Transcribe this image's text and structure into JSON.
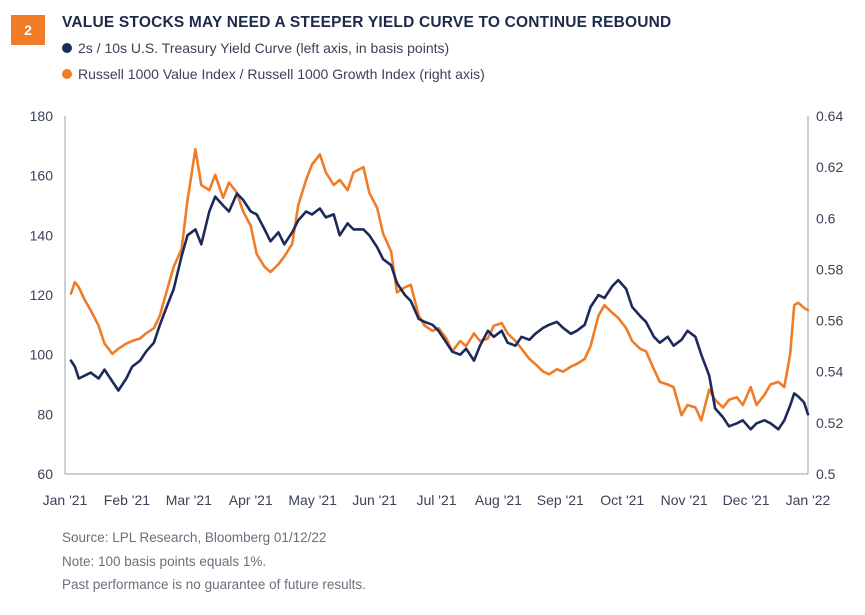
{
  "badge": "2",
  "title": "VALUE STOCKS MAY NEED A STEEPER YIELD CURVE TO CONTINUE REBOUND",
  "legend": [
    {
      "label": "2s / 10s U.S. Treasury Yield Curve (left axis, in basis points)",
      "color": "#1c2a5a"
    },
    {
      "label": "Russell 1000 Value Index / Russell 1000 Growth Index (right axis)",
      "color": "#f07c28"
    }
  ],
  "footnotes": {
    "source": "Source: LPL Research, Bloomberg   01/12/22",
    "note": "Note: 100 basis points equals 1%.",
    "disclaimer": "Past performance is no guarantee of future results."
  },
  "chart_data": {
    "type": "line",
    "x_labels": [
      "Jan '21",
      "Feb '21",
      "Mar '21",
      "Apr '21",
      "May '21",
      "Jun '21",
      "Jul '21",
      "Aug '21",
      "Sep '21",
      "Oct '21",
      "Nov '21",
      "Dec '21",
      "Jan '22"
    ],
    "x_range": [
      "2021-01-01",
      "2022-01-12"
    ],
    "left_axis": {
      "ticks": [
        60,
        80,
        100,
        120,
        140,
        160,
        180
      ],
      "ylim": [
        60,
        180
      ]
    },
    "right_axis": {
      "ticks": [
        0.5,
        0.52,
        0.54,
        0.56,
        0.58,
        0.6,
        0.62,
        0.64
      ],
      "ylim": [
        0.5,
        0.64
      ]
    },
    "grid": false,
    "series": [
      {
        "name": "2s / 10s U.S. Treasury Yield Curve (left axis, in basis points)",
        "axis": "left",
        "color": "#1c2a5a",
        "points": [
          [
            "2021-01-04",
            98
          ],
          [
            "2021-01-06",
            96
          ],
          [
            "2021-01-08",
            92
          ],
          [
            "2021-01-11",
            93
          ],
          [
            "2021-01-14",
            94
          ],
          [
            "2021-01-18",
            92
          ],
          [
            "2021-01-21",
            95
          ],
          [
            "2021-01-25",
            91
          ],
          [
            "2021-01-28",
            88
          ],
          [
            "2021-02-01",
            92
          ],
          [
            "2021-02-04",
            96
          ],
          [
            "2021-02-08",
            98
          ],
          [
            "2021-02-11",
            101
          ],
          [
            "2021-02-15",
            104
          ],
          [
            "2021-02-18",
            110
          ],
          [
            "2021-02-22",
            117
          ],
          [
            "2021-02-25",
            122
          ],
          [
            "2021-03-01",
            133
          ],
          [
            "2021-03-04",
            140
          ],
          [
            "2021-03-08",
            142
          ],
          [
            "2021-03-11",
            137
          ],
          [
            "2021-03-15",
            148
          ],
          [
            "2021-03-18",
            153
          ],
          [
            "2021-03-22",
            150
          ],
          [
            "2021-03-25",
            148
          ],
          [
            "2021-03-29",
            154
          ],
          [
            "2021-04-01",
            152
          ],
          [
            "2021-04-05",
            148
          ],
          [
            "2021-04-08",
            147
          ],
          [
            "2021-04-12",
            142
          ],
          [
            "2021-04-15",
            138
          ],
          [
            "2021-04-19",
            141
          ],
          [
            "2021-04-22",
            137
          ],
          [
            "2021-04-26",
            141
          ],
          [
            "2021-04-29",
            145
          ],
          [
            "2021-05-03",
            148
          ],
          [
            "2021-05-06",
            147
          ],
          [
            "2021-05-10",
            149
          ],
          [
            "2021-05-13",
            146
          ],
          [
            "2021-05-17",
            147
          ],
          [
            "2021-05-20",
            140
          ],
          [
            "2021-05-24",
            144
          ],
          [
            "2021-05-27",
            142
          ],
          [
            "2021-06-01",
            142
          ],
          [
            "2021-06-04",
            140
          ],
          [
            "2021-06-08",
            136
          ],
          [
            "2021-06-11",
            132
          ],
          [
            "2021-06-15",
            130
          ],
          [
            "2021-06-18",
            124
          ],
          [
            "2021-06-22",
            120
          ],
          [
            "2021-06-25",
            118
          ],
          [
            "2021-06-29",
            112
          ],
          [
            "2021-07-02",
            111
          ],
          [
            "2021-07-06",
            110
          ],
          [
            "2021-07-09",
            108
          ],
          [
            "2021-07-13",
            104
          ],
          [
            "2021-07-16",
            101
          ],
          [
            "2021-07-20",
            100
          ],
          [
            "2021-07-23",
            102
          ],
          [
            "2021-07-27",
            98
          ],
          [
            "2021-07-30",
            103
          ],
          [
            "2021-08-03",
            108
          ],
          [
            "2021-08-06",
            106
          ],
          [
            "2021-08-10",
            108
          ],
          [
            "2021-08-13",
            104
          ],
          [
            "2021-08-17",
            103
          ],
          [
            "2021-08-20",
            106
          ],
          [
            "2021-08-24",
            105
          ],
          [
            "2021-08-27",
            107
          ],
          [
            "2021-08-31",
            109
          ],
          [
            "2021-09-03",
            110
          ],
          [
            "2021-09-07",
            111
          ],
          [
            "2021-09-10",
            109
          ],
          [
            "2021-09-14",
            107
          ],
          [
            "2021-09-17",
            108
          ],
          [
            "2021-09-21",
            110
          ],
          [
            "2021-09-24",
            116
          ],
          [
            "2021-09-28",
            120
          ],
          [
            "2021-10-01",
            119
          ],
          [
            "2021-10-05",
            123
          ],
          [
            "2021-10-08",
            125
          ],
          [
            "2021-10-12",
            122
          ],
          [
            "2021-10-15",
            116
          ],
          [
            "2021-10-19",
            113
          ],
          [
            "2021-10-22",
            111
          ],
          [
            "2021-10-26",
            106
          ],
          [
            "2021-10-29",
            104
          ],
          [
            "2021-11-02",
            106
          ],
          [
            "2021-11-05",
            103
          ],
          [
            "2021-11-09",
            105
          ],
          [
            "2021-11-12",
            108
          ],
          [
            "2021-11-16",
            106
          ],
          [
            "2021-11-19",
            100
          ],
          [
            "2021-11-23",
            93
          ],
          [
            "2021-11-26",
            82
          ],
          [
            "2021-11-30",
            79
          ],
          [
            "2021-12-03",
            76
          ],
          [
            "2021-12-07",
            77
          ],
          [
            "2021-12-10",
            78
          ],
          [
            "2021-12-14",
            75
          ],
          [
            "2021-12-17",
            77
          ],
          [
            "2021-12-21",
            78
          ],
          [
            "2021-12-24",
            77
          ],
          [
            "2021-12-28",
            75
          ],
          [
            "2021-12-31",
            78
          ],
          [
            "2022-01-03",
            83
          ],
          [
            "2022-01-05",
            87
          ],
          [
            "2022-01-07",
            86
          ],
          [
            "2022-01-10",
            84
          ],
          [
            "2022-01-12",
            80
          ]
        ]
      },
      {
        "name": "Russell 1000 Value Index / Russell 1000 Growth Index (right axis)",
        "axis": "right",
        "color": "#f07c28",
        "points": [
          [
            "2021-01-04",
            0.5705
          ],
          [
            "2021-01-06",
            0.575
          ],
          [
            "2021-01-08",
            0.573
          ],
          [
            "2021-01-11",
            0.568
          ],
          [
            "2021-01-14",
            0.564
          ],
          [
            "2021-01-18",
            0.558
          ],
          [
            "2021-01-21",
            0.551
          ],
          [
            "2021-01-25",
            0.547
          ],
          [
            "2021-01-28",
            0.549
          ],
          [
            "2021-02-01",
            0.551
          ],
          [
            "2021-02-04",
            0.552
          ],
          [
            "2021-02-08",
            0.553
          ],
          [
            "2021-02-11",
            0.555
          ],
          [
            "2021-02-15",
            0.557
          ],
          [
            "2021-02-18",
            0.562
          ],
          [
            "2021-02-22",
            0.573
          ],
          [
            "2021-02-25",
            0.581
          ],
          [
            "2021-03-01",
            0.588
          ],
          [
            "2021-03-04",
            0.607
          ],
          [
            "2021-03-08",
            0.627
          ],
          [
            "2021-03-11",
            0.613
          ],
          [
            "2021-03-15",
            0.611
          ],
          [
            "2021-03-18",
            0.617
          ],
          [
            "2021-03-22",
            0.608
          ],
          [
            "2021-03-25",
            0.614
          ],
          [
            "2021-03-29",
            0.61
          ],
          [
            "2021-04-01",
            0.603
          ],
          [
            "2021-04-05",
            0.597
          ],
          [
            "2021-04-08",
            0.586
          ],
          [
            "2021-04-12",
            0.581
          ],
          [
            "2021-04-15",
            0.579
          ],
          [
            "2021-04-19",
            0.582
          ],
          [
            "2021-04-22",
            0.585
          ],
          [
            "2021-04-26",
            0.59
          ],
          [
            "2021-04-29",
            0.605
          ],
          [
            "2021-05-03",
            0.615
          ],
          [
            "2021-05-06",
            0.621
          ],
          [
            "2021-05-10",
            0.625
          ],
          [
            "2021-05-13",
            0.618
          ],
          [
            "2021-05-17",
            0.613
          ],
          [
            "2021-05-20",
            0.615
          ],
          [
            "2021-05-24",
            0.611
          ],
          [
            "2021-05-27",
            0.618
          ],
          [
            "2021-06-01",
            0.62
          ],
          [
            "2021-06-04",
            0.61
          ],
          [
            "2021-06-08",
            0.604
          ],
          [
            "2021-06-11",
            0.594
          ],
          [
            "2021-06-15",
            0.587
          ],
          [
            "2021-06-18",
            0.571
          ],
          [
            "2021-06-22",
            0.573
          ],
          [
            "2021-06-25",
            0.574
          ],
          [
            "2021-06-29",
            0.562
          ],
          [
            "2021-07-02",
            0.558
          ],
          [
            "2021-07-06",
            0.556
          ],
          [
            "2021-07-09",
            0.557
          ],
          [
            "2021-07-13",
            0.553
          ],
          [
            "2021-07-16",
            0.548
          ],
          [
            "2021-07-20",
            0.552
          ],
          [
            "2021-07-23",
            0.55
          ],
          [
            "2021-07-27",
            0.555
          ],
          [
            "2021-07-30",
            0.552
          ],
          [
            "2021-08-03",
            0.553
          ],
          [
            "2021-08-06",
            0.558
          ],
          [
            "2021-08-10",
            0.559
          ],
          [
            "2021-08-13",
            0.555
          ],
          [
            "2021-08-17",
            0.552
          ],
          [
            "2021-08-20",
            0.549
          ],
          [
            "2021-08-24",
            0.545
          ],
          [
            "2021-08-27",
            0.543
          ],
          [
            "2021-08-31",
            0.54
          ],
          [
            "2021-09-03",
            0.539
          ],
          [
            "2021-09-07",
            0.541
          ],
          [
            "2021-09-10",
            0.54
          ],
          [
            "2021-09-14",
            0.542
          ],
          [
            "2021-09-17",
            0.543
          ],
          [
            "2021-09-21",
            0.545
          ],
          [
            "2021-09-24",
            0.55
          ],
          [
            "2021-09-28",
            0.562
          ],
          [
            "2021-10-01",
            0.566
          ],
          [
            "2021-10-05",
            0.563
          ],
          [
            "2021-10-08",
            0.561
          ],
          [
            "2021-10-12",
            0.557
          ],
          [
            "2021-10-15",
            0.552
          ],
          [
            "2021-10-19",
            0.549
          ],
          [
            "2021-10-22",
            0.548
          ],
          [
            "2021-10-26",
            0.541
          ],
          [
            "2021-10-29",
            0.536
          ],
          [
            "2021-11-02",
            0.535
          ],
          [
            "2021-11-05",
            0.534
          ],
          [
            "2021-11-09",
            0.523
          ],
          [
            "2021-11-12",
            0.527
          ],
          [
            "2021-11-16",
            0.526
          ],
          [
            "2021-11-19",
            0.521
          ],
          [
            "2021-11-23",
            0.533
          ],
          [
            "2021-11-26",
            0.529
          ],
          [
            "2021-11-30",
            0.526
          ],
          [
            "2021-12-03",
            0.529
          ],
          [
            "2021-12-07",
            0.53
          ],
          [
            "2021-12-10",
            0.527
          ],
          [
            "2021-12-14",
            0.534
          ],
          [
            "2021-12-17",
            0.527
          ],
          [
            "2021-12-21",
            0.531
          ],
          [
            "2021-12-24",
            0.535
          ],
          [
            "2021-12-28",
            0.536
          ],
          [
            "2021-12-31",
            0.534
          ],
          [
            "2022-01-03",
            0.547
          ],
          [
            "2022-01-05",
            0.566
          ],
          [
            "2022-01-07",
            0.567
          ],
          [
            "2022-01-10",
            0.565
          ],
          [
            "2022-01-12",
            0.564
          ]
        ]
      }
    ]
  }
}
